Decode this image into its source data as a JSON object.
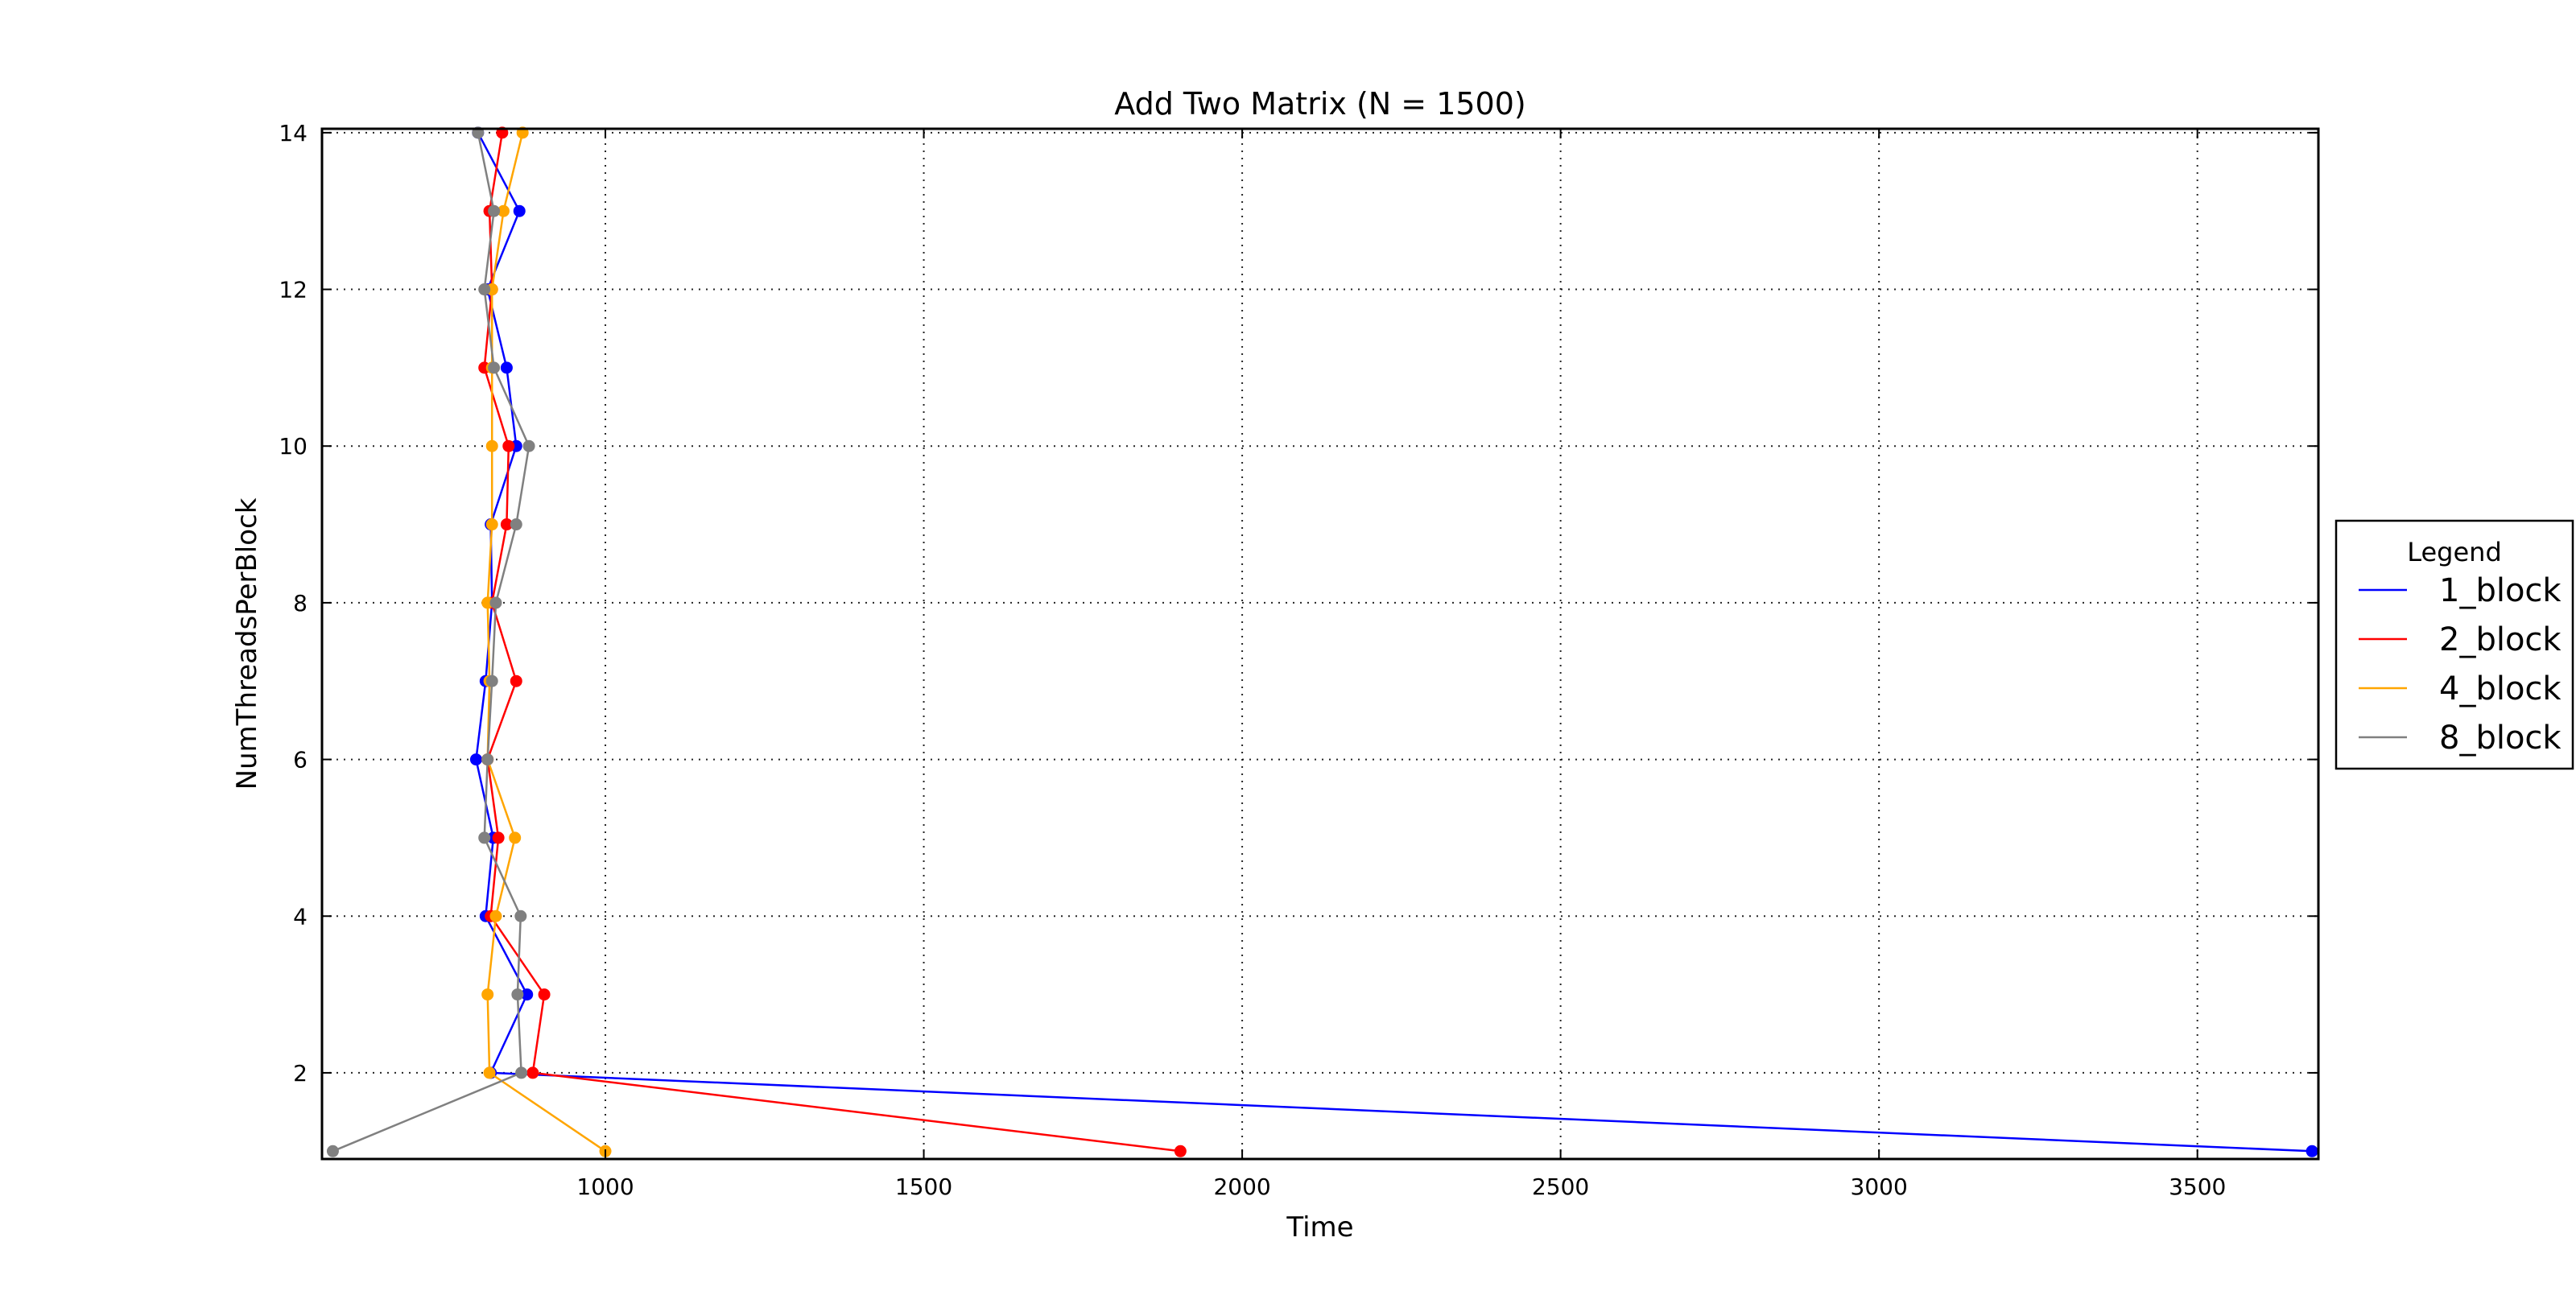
{
  "chart_data": {
    "type": "line",
    "title": "Add Two Matrix (N = 1500)",
    "xlabel": "Time",
    "ylabel": "NumThreadsPerBlock",
    "xlim": [
      555,
      3690
    ],
    "ylim": [
      0.9,
      14.05
    ],
    "xticks": [
      1000,
      1500,
      2000,
      2500,
      3000,
      3500
    ],
    "yticks": [
      2,
      4,
      6,
      8,
      10,
      12,
      14
    ],
    "grid": true,
    "grid_style": "dotted",
    "legend": {
      "title": "Legend",
      "placement": "right, outside plot"
    },
    "series": [
      {
        "name": "1_block",
        "color": "#0000ff",
        "points": [
          [
            3680,
            1
          ],
          [
            820,
            2
          ],
          [
            877,
            3
          ],
          [
            812,
            4
          ],
          [
            824,
            5
          ],
          [
            797,
            6
          ],
          [
            812,
            7
          ],
          [
            822,
            8
          ],
          [
            820,
            9
          ],
          [
            860,
            10
          ],
          [
            845,
            11
          ],
          [
            815,
            12
          ],
          [
            865,
            13
          ],
          [
            800,
            14
          ]
        ]
      },
      {
        "name": "2_block",
        "color": "#ff0000",
        "points": [
          [
            1903,
            1
          ],
          [
            886,
            2
          ],
          [
            904,
            3
          ],
          [
            820,
            4
          ],
          [
            832,
            5
          ],
          [
            815,
            6
          ],
          [
            860,
            7
          ],
          [
            822,
            8
          ],
          [
            845,
            9
          ],
          [
            848,
            10
          ],
          [
            810,
            11
          ],
          [
            822,
            12
          ],
          [
            818,
            13
          ],
          [
            838,
            14
          ]
        ]
      },
      {
        "name": "4_block",
        "color": "#ffa500",
        "points": [
          [
            1000,
            1
          ],
          [
            818,
            2
          ],
          [
            815,
            3
          ],
          [
            828,
            4
          ],
          [
            858,
            5
          ],
          [
            815,
            6
          ],
          [
            818,
            7
          ],
          [
            815,
            8
          ],
          [
            822,
            9
          ],
          [
            822,
            10
          ],
          [
            822,
            11
          ],
          [
            822,
            12
          ],
          [
            840,
            13
          ],
          [
            870,
            14
          ]
        ]
      },
      {
        "name": "8_block",
        "color": "#808080",
        "points": [
          [
            572,
            1
          ],
          [
            868,
            2
          ],
          [
            862,
            3
          ],
          [
            867,
            4
          ],
          [
            810,
            5
          ],
          [
            815,
            6
          ],
          [
            822,
            7
          ],
          [
            828,
            8
          ],
          [
            860,
            9
          ],
          [
            880,
            10
          ],
          [
            825,
            11
          ],
          [
            810,
            12
          ],
          [
            825,
            13
          ],
          [
            800,
            14
          ]
        ]
      }
    ]
  }
}
